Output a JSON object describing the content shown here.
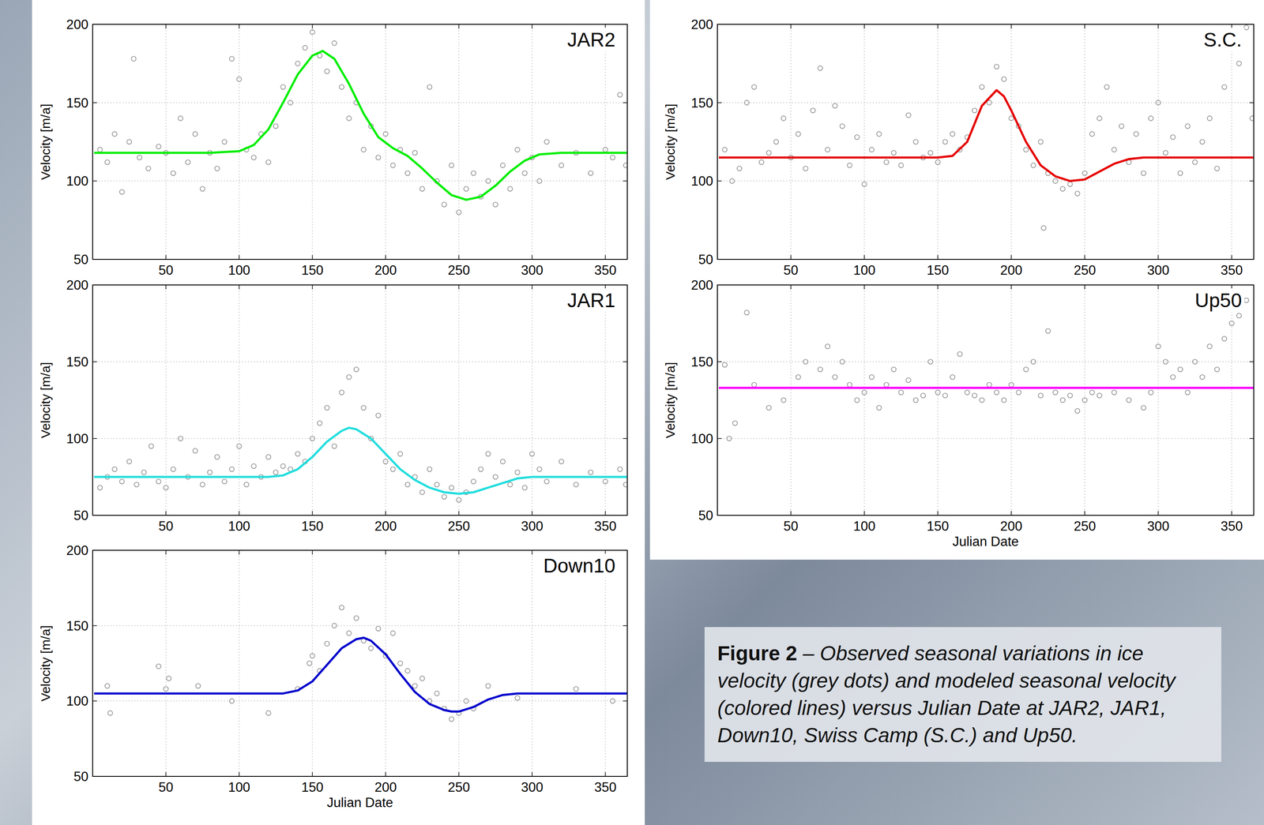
{
  "chart_data": [
    {
      "type": "scatter",
      "title": "JAR2",
      "y_label": "Velocity [m/a]",
      "xlim": [
        0,
        365
      ],
      "ylim": [
        50,
        200
      ],
      "xticks": [
        50,
        100,
        150,
        200,
        250,
        300,
        350
      ],
      "yticks": [
        50,
        100,
        150,
        200
      ],
      "grid": true,
      "series": [
        {
          "type": "scatter",
          "color": "#8c8c8c",
          "marker": "circle",
          "x": [
            5,
            10,
            15,
            20,
            25,
            28,
            32,
            38,
            45,
            50,
            55,
            60,
            65,
            70,
            75,
            80,
            85,
            90,
            95,
            100,
            105,
            110,
            115,
            120,
            125,
            130,
            135,
            140,
            145,
            150,
            155,
            160,
            165,
            170,
            175,
            180,
            185,
            190,
            195,
            200,
            205,
            210,
            215,
            220,
            225,
            230,
            235,
            240,
            245,
            250,
            255,
            260,
            265,
            270,
            275,
            280,
            285,
            290,
            295,
            300,
            305,
            310,
            320,
            330,
            340,
            350,
            355,
            360,
            364
          ],
          "values": [
            120,
            112,
            130,
            93,
            125,
            178,
            115,
            108,
            122,
            118,
            105,
            140,
            112,
            130,
            95,
            118,
            108,
            125,
            178,
            165,
            120,
            115,
            130,
            112,
            135,
            160,
            150,
            175,
            185,
            195,
            180,
            170,
            188,
            160,
            140,
            150,
            120,
            135,
            115,
            130,
            110,
            120,
            105,
            118,
            95,
            160,
            100,
            85,
            110,
            80,
            95,
            105,
            90,
            100,
            85,
            110,
            95,
            120,
            105,
            115,
            100,
            125,
            110,
            118,
            105,
            120,
            115,
            155,
            110
          ]
        },
        {
          "type": "line",
          "color": "#00ee00",
          "line_style": "solid",
          "x": [
            1,
            20,
            40,
            60,
            80,
            100,
            110,
            120,
            130,
            140,
            150,
            157,
            165,
            175,
            185,
            195,
            205,
            215,
            225,
            235,
            245,
            255,
            265,
            275,
            285,
            295,
            305,
            320,
            340,
            365
          ],
          "values": [
            118,
            118,
            118,
            118,
            118,
            119,
            123,
            133,
            150,
            168,
            180,
            183,
            178,
            162,
            143,
            128,
            121,
            116,
            108,
            99,
            91,
            88,
            90,
            97,
            106,
            113,
            117,
            118,
            118,
            118
          ]
        }
      ]
    },
    {
      "type": "scatter",
      "title": "JAR1",
      "y_label": "Velocity [m/a]",
      "xlim": [
        0,
        365
      ],
      "ylim": [
        50,
        200
      ],
      "xticks": [
        50,
        100,
        150,
        200,
        250,
        300,
        350
      ],
      "yticks": [
        50,
        100,
        150,
        200
      ],
      "grid": true,
      "series": [
        {
          "type": "scatter",
          "color": "#8c8c8c",
          "marker": "circle",
          "x": [
            5,
            10,
            15,
            20,
            25,
            30,
            35,
            40,
            45,
            50,
            55,
            60,
            65,
            70,
            75,
            80,
            85,
            90,
            95,
            100,
            105,
            110,
            115,
            120,
            125,
            130,
            135,
            140,
            145,
            150,
            155,
            160,
            165,
            170,
            175,
            180,
            185,
            190,
            195,
            200,
            205,
            210,
            215,
            220,
            225,
            230,
            235,
            240,
            245,
            250,
            255,
            260,
            265,
            270,
            275,
            280,
            285,
            290,
            295,
            300,
            305,
            310,
            320,
            330,
            340,
            350,
            360,
            364
          ],
          "values": [
            68,
            75,
            80,
            72,
            85,
            70,
            78,
            95,
            72,
            68,
            80,
            100,
            75,
            92,
            70,
            78,
            88,
            72,
            80,
            95,
            70,
            82,
            75,
            88,
            78,
            82,
            80,
            90,
            85,
            100,
            110,
            120,
            95,
            130,
            140,
            145,
            120,
            100,
            115,
            85,
            80,
            90,
            70,
            75,
            65,
            80,
            70,
            62,
            68,
            60,
            65,
            72,
            80,
            90,
            75,
            85,
            70,
            78,
            68,
            90,
            80,
            72,
            85,
            70,
            78,
            72,
            80,
            70
          ]
        },
        {
          "type": "line",
          "color": "#22dddd",
          "line_style": "solid",
          "x": [
            1,
            30,
            60,
            90,
            120,
            130,
            140,
            150,
            160,
            170,
            175,
            180,
            190,
            200,
            210,
            220,
            230,
            240,
            250,
            260,
            270,
            280,
            290,
            300,
            330,
            365
          ],
          "values": [
            75,
            75,
            75,
            75,
            75,
            76,
            80,
            88,
            98,
            105,
            107,
            106,
            100,
            90,
            80,
            73,
            68,
            65,
            64,
            65,
            68,
            71,
            74,
            75,
            75,
            75
          ]
        }
      ]
    },
    {
      "type": "scatter",
      "title": "Down10",
      "x_label": "Julian Date",
      "y_label": "Velocity [m/a]",
      "xlim": [
        0,
        365
      ],
      "ylim": [
        50,
        200
      ],
      "xticks": [
        50,
        100,
        150,
        200,
        250,
        300,
        350
      ],
      "yticks": [
        50,
        100,
        150,
        200
      ],
      "grid": true,
      "series": [
        {
          "type": "scatter",
          "color": "#8c8c8c",
          "marker": "circle",
          "x": [
            10,
            12,
            45,
            50,
            52,
            72,
            95,
            120,
            140,
            148,
            150,
            155,
            160,
            165,
            170,
            175,
            180,
            185,
            190,
            195,
            200,
            205,
            210,
            215,
            220,
            225,
            230,
            235,
            240,
            245,
            250,
            255,
            260,
            270,
            290,
            330,
            355
          ],
          "values": [
            110,
            92,
            123,
            108,
            115,
            110,
            100,
            92,
            108,
            125,
            130,
            120,
            138,
            150,
            162,
            145,
            155,
            140,
            135,
            148,
            130,
            145,
            125,
            120,
            110,
            115,
            100,
            105,
            95,
            88,
            92,
            100,
            95,
            110,
            102,
            108,
            100
          ]
        },
        {
          "type": "line",
          "color": "#0000cc",
          "line_style": "solid",
          "x": [
            1,
            50,
            100,
            130,
            140,
            150,
            160,
            170,
            180,
            185,
            190,
            200,
            210,
            220,
            230,
            240,
            245,
            250,
            260,
            270,
            280,
            290,
            330,
            365
          ],
          "values": [
            105,
            105,
            105,
            105,
            107,
            113,
            124,
            135,
            141,
            142,
            140,
            131,
            118,
            106,
            98,
            94,
            93,
            93,
            96,
            101,
            104,
            105,
            105,
            105
          ]
        }
      ]
    },
    {
      "type": "scatter",
      "title": "S.C.",
      "y_label": "Velocity [m/a]",
      "xlim": [
        0,
        365
      ],
      "ylim": [
        50,
        200
      ],
      "xticks": [
        50,
        100,
        150,
        200,
        250,
        300,
        350
      ],
      "yticks": [
        50,
        100,
        150,
        200
      ],
      "grid": true,
      "series": [
        {
          "type": "scatter",
          "color": "#8c8c8c",
          "marker": "circle",
          "x": [
            5,
            10,
            15,
            20,
            25,
            30,
            35,
            40,
            45,
            50,
            55,
            60,
            65,
            70,
            75,
            80,
            85,
            90,
            95,
            100,
            105,
            110,
            115,
            120,
            125,
            130,
            135,
            140,
            145,
            150,
            155,
            160,
            165,
            170,
            175,
            180,
            185,
            190,
            195,
            200,
            205,
            210,
            215,
            220,
            222,
            225,
            230,
            235,
            240,
            245,
            250,
            255,
            260,
            265,
            270,
            275,
            280,
            285,
            290,
            295,
            300,
            305,
            310,
            315,
            320,
            325,
            330,
            335,
            340,
            345,
            350,
            355,
            360,
            364
          ],
          "values": [
            120,
            100,
            108,
            150,
            160,
            112,
            118,
            125,
            140,
            115,
            130,
            108,
            145,
            172,
            120,
            148,
            135,
            110,
            128,
            98,
            120,
            130,
            112,
            118,
            110,
            142,
            125,
            115,
            118,
            112,
            125,
            130,
            120,
            128,
            145,
            160,
            150,
            173,
            165,
            140,
            135,
            120,
            110,
            125,
            70,
            105,
            100,
            95,
            98,
            92,
            105,
            130,
            140,
            160,
            120,
            135,
            112,
            130,
            105,
            140,
            150,
            118,
            128,
            105,
            135,
            112,
            125,
            140,
            108,
            160,
            190,
            175,
            198,
            140
          ]
        },
        {
          "type": "line",
          "color": "#e60000",
          "line_style": "solid",
          "x": [
            1,
            50,
            100,
            150,
            160,
            170,
            180,
            190,
            195,
            200,
            210,
            220,
            230,
            240,
            250,
            260,
            270,
            280,
            290,
            300,
            330,
            365
          ],
          "values": [
            115,
            115,
            115,
            115,
            116,
            125,
            148,
            158,
            154,
            145,
            125,
            110,
            103,
            100,
            101,
            106,
            111,
            114,
            115,
            115,
            115,
            115
          ]
        }
      ]
    },
    {
      "type": "scatter",
      "title": "Up50",
      "x_label": "Julian Date",
      "y_label": "Velocity [m/a]",
      "xlim": [
        0,
        365
      ],
      "ylim": [
        50,
        200
      ],
      "xticks": [
        50,
        100,
        150,
        200,
        250,
        300,
        350
      ],
      "yticks": [
        50,
        100,
        150,
        200
      ],
      "grid": true,
      "series": [
        {
          "type": "scatter",
          "color": "#8c8c8c",
          "marker": "circle",
          "x": [
            5,
            8,
            12,
            20,
            25,
            35,
            45,
            55,
            60,
            70,
            75,
            80,
            85,
            90,
            95,
            100,
            105,
            110,
            115,
            120,
            125,
            130,
            135,
            140,
            145,
            150,
            155,
            160,
            165,
            170,
            175,
            180,
            185,
            190,
            195,
            200,
            205,
            210,
            215,
            220,
            225,
            230,
            235,
            240,
            245,
            250,
            255,
            260,
            270,
            280,
            290,
            295,
            300,
            305,
            310,
            315,
            320,
            325,
            330,
            335,
            340,
            345,
            350,
            355,
            360
          ],
          "values": [
            148,
            100,
            110,
            182,
            135,
            120,
            125,
            140,
            150,
            145,
            160,
            140,
            150,
            135,
            125,
            130,
            140,
            120,
            135,
            145,
            130,
            138,
            125,
            128,
            150,
            130,
            128,
            140,
            155,
            130,
            128,
            125,
            135,
            130,
            125,
            135,
            130,
            145,
            150,
            128,
            170,
            130,
            125,
            128,
            118,
            125,
            130,
            128,
            130,
            125,
            120,
            130,
            160,
            150,
            140,
            145,
            130,
            150,
            140,
            160,
            145,
            165,
            175,
            180,
            190
          ]
        },
        {
          "type": "line",
          "color": "#ff00ff",
          "line_style": "solid",
          "x": [
            1,
            365
          ],
          "values": [
            133,
            133
          ]
        }
      ]
    }
  ],
  "caption": {
    "title": "Figure 2",
    "text": "– Observed seasonal variations in ice velocity (grey dots) and modeled seasonal velocity (colored lines) versus Julian Date at JAR2, JAR1, Down10, Swiss Camp (S.C.) and Up50."
  }
}
